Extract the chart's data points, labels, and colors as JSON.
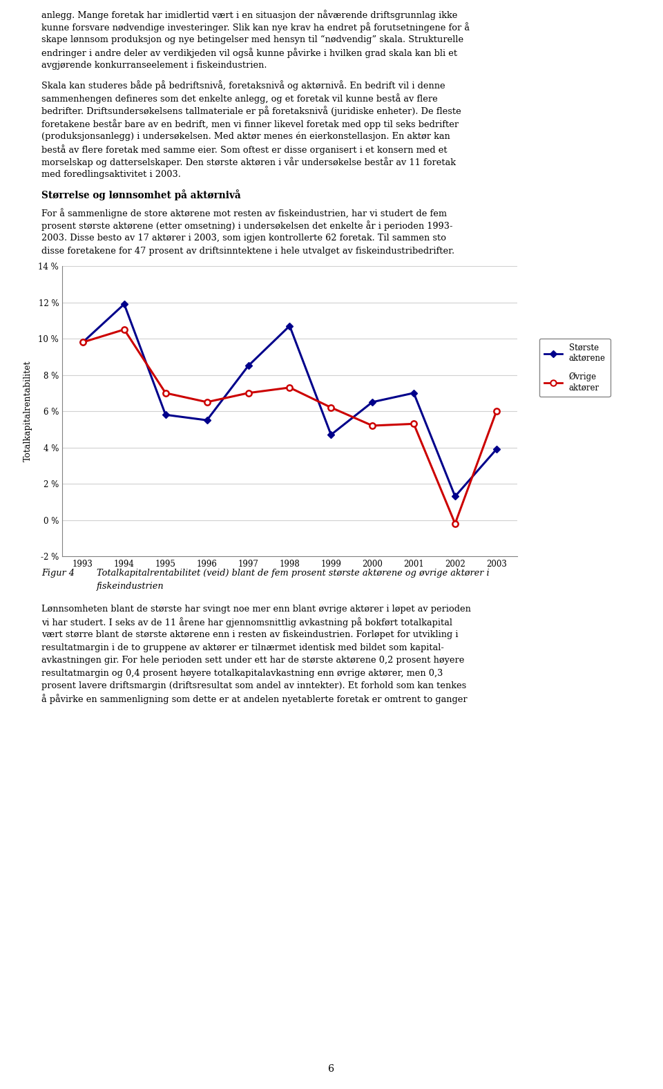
{
  "years": [
    1993,
    1994,
    1995,
    1996,
    1997,
    1998,
    1999,
    2000,
    2001,
    2002,
    2003
  ],
  "storste": [
    9.8,
    11.9,
    5.8,
    5.5,
    8.5,
    10.7,
    4.7,
    6.5,
    7.0,
    1.3,
    3.9
  ],
  "ovrige": [
    9.8,
    10.5,
    7.0,
    6.5,
    7.0,
    7.3,
    6.2,
    5.2,
    5.3,
    -0.2,
    6.0
  ],
  "storste_color": "#00008B",
  "ovrige_color": "#CC0000",
  "ylabel": "Totalkapitalrentabilitet",
  "ylim": [
    -2,
    14
  ],
  "yticks": [
    -2,
    0,
    2,
    4,
    6,
    8,
    10,
    12,
    14
  ],
  "ytick_labels": [
    "-2 %",
    "0 %",
    "2 %",
    "4 %",
    "6 %",
    "8 %",
    "10 %",
    "12 %",
    "14 %"
  ],
  "legend_storste": "Største\naktørene",
  "legend_ovrige": "Øvrige\naktører",
  "page_number": "6",
  "para1_lines": [
    "anlegg. Mange foretak har imidlertid vært i en situasjon der nåværende driftsgrunnlag ikke",
    "kunne forsvare nødvendige investeringer. Slik kan nye krav ha endret på forutsetningene for å",
    "skape lønnsom produksjon og nye betingelser med hensyn til “nødvendig” skala. Strukturelle",
    "endringer i andre deler av verdikjeden vil også kunne påvirke i hvilken grad skala kan bli et",
    "avgjørende konkurranseelement i fiskeindustrien."
  ],
  "para2_lines": [
    "Skala kan studeres både på bedriftsnivå, foretaksnivå og aktørnivå. En bedrift vil i denne",
    "sammenhengen defineres som det enkelte anlegg, og et foretak vil kunne bestå av flere",
    "bedrifter. Driftsundersøkelsens tallmateriale er på foretaksnivå (juridiske enheter). De fleste",
    "foretakene består bare av en bedrift, men vi finner likevel foretak med opp til seks bedrifter",
    "(produksjonsanlegg) i undersøkelsen. Med aktør menes én eierkonstellasjon. En aktør kan",
    "bestå av flere foretak med samme eier. Som oftest er disse organisert i et konsern med et",
    "morselskap og datterselskaper. Den største aktøren i vår undersøkelse består av 11 foretak",
    "med foredlingsaktivitet i 2003."
  ],
  "heading": "Størrelse og lønnsomhet på aktørnivå",
  "para3_lines": [
    "For å sammenligne de store aktørene mot resten av fiskeindustrien, har vi studert de fem",
    "prosent største aktørene (etter omsetning) i undersøkelsen det enkelte år i perioden 1993-",
    "2003. Disse besto av 17 aktører i 2003, som igjen kontrollerte 62 foretak. Til sammen sto",
    "disse foretakene for 47 prosent av driftsinntektene i hele utvalget av fiskeindustribedrifter."
  ],
  "caption_label": "Figur 4",
  "caption_text_line1": "Totalkapitalrentabilitet (veid) blant de fem prosent største aktørene og øvrige aktører i",
  "caption_text_line2": "fiskeindustrien",
  "para4_lines": [
    "Lønnsomheten blant de største har svingt noe mer enn blant øvrige aktører i løpet av perioden",
    "vi har studert. I seks av de 11 årene har gjennomsnittlig avkastning på bokført totalkapital",
    "vært større blant de største aktørene enn i resten av fiskeindustrien. Forløpet for utvikling i",
    "resultatmargin i de to gruppene av aktører er tilnærmet identisk med bildet som kapital-",
    "avkastningen gir. For hele perioden sett under ett har de største aktørene 0,2 prosent høyere",
    "resultatmargin og 0,4 prosent høyere totalkapitalavkastning enn øvrige aktører, men 0,3",
    "prosent lavere driftsmargin (driftsresultat som andel av inntekter). Et forhold som kan tenkes",
    "å påvirke en sammenligning som dette er at andelen nyetablerte foretak er omtrent to ganger"
  ]
}
